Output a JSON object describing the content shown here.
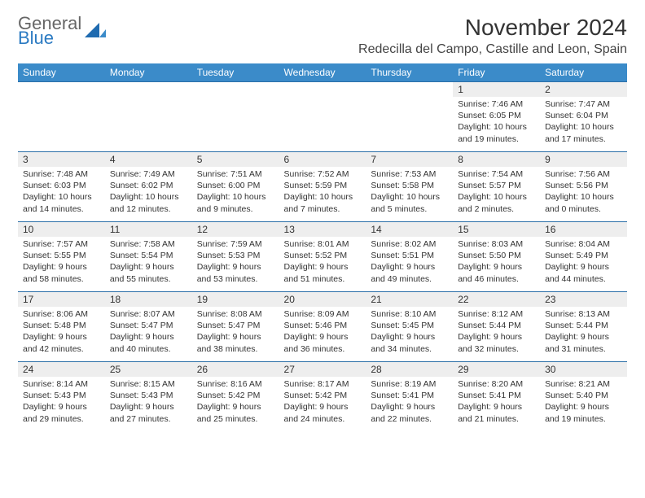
{
  "brand": {
    "word1": "General",
    "word2": "Blue"
  },
  "header": {
    "title": "November 2024",
    "location": "Redecilla del Campo, Castille and Leon, Spain"
  },
  "colors": {
    "header_bg": "#3b8bc9",
    "header_text": "#ffffff",
    "border": "#2b6fa8",
    "daynum_bg": "#eeeeee",
    "brand_blue": "#2b7ac2"
  },
  "day_labels": [
    "Sunday",
    "Monday",
    "Tuesday",
    "Wednesday",
    "Thursday",
    "Friday",
    "Saturday"
  ],
  "weeks": [
    [
      null,
      null,
      null,
      null,
      null,
      {
        "n": "1",
        "sunrise": "Sunrise: 7:46 AM",
        "sunset": "Sunset: 6:05 PM",
        "day1": "Daylight: 10 hours",
        "day2": "and 19 minutes."
      },
      {
        "n": "2",
        "sunrise": "Sunrise: 7:47 AM",
        "sunset": "Sunset: 6:04 PM",
        "day1": "Daylight: 10 hours",
        "day2": "and 17 minutes."
      }
    ],
    [
      {
        "n": "3",
        "sunrise": "Sunrise: 7:48 AM",
        "sunset": "Sunset: 6:03 PM",
        "day1": "Daylight: 10 hours",
        "day2": "and 14 minutes."
      },
      {
        "n": "4",
        "sunrise": "Sunrise: 7:49 AM",
        "sunset": "Sunset: 6:02 PM",
        "day1": "Daylight: 10 hours",
        "day2": "and 12 minutes."
      },
      {
        "n": "5",
        "sunrise": "Sunrise: 7:51 AM",
        "sunset": "Sunset: 6:00 PM",
        "day1": "Daylight: 10 hours",
        "day2": "and 9 minutes."
      },
      {
        "n": "6",
        "sunrise": "Sunrise: 7:52 AM",
        "sunset": "Sunset: 5:59 PM",
        "day1": "Daylight: 10 hours",
        "day2": "and 7 minutes."
      },
      {
        "n": "7",
        "sunrise": "Sunrise: 7:53 AM",
        "sunset": "Sunset: 5:58 PM",
        "day1": "Daylight: 10 hours",
        "day2": "and 5 minutes."
      },
      {
        "n": "8",
        "sunrise": "Sunrise: 7:54 AM",
        "sunset": "Sunset: 5:57 PM",
        "day1": "Daylight: 10 hours",
        "day2": "and 2 minutes."
      },
      {
        "n": "9",
        "sunrise": "Sunrise: 7:56 AM",
        "sunset": "Sunset: 5:56 PM",
        "day1": "Daylight: 10 hours",
        "day2": "and 0 minutes."
      }
    ],
    [
      {
        "n": "10",
        "sunrise": "Sunrise: 7:57 AM",
        "sunset": "Sunset: 5:55 PM",
        "day1": "Daylight: 9 hours",
        "day2": "and 58 minutes."
      },
      {
        "n": "11",
        "sunrise": "Sunrise: 7:58 AM",
        "sunset": "Sunset: 5:54 PM",
        "day1": "Daylight: 9 hours",
        "day2": "and 55 minutes."
      },
      {
        "n": "12",
        "sunrise": "Sunrise: 7:59 AM",
        "sunset": "Sunset: 5:53 PM",
        "day1": "Daylight: 9 hours",
        "day2": "and 53 minutes."
      },
      {
        "n": "13",
        "sunrise": "Sunrise: 8:01 AM",
        "sunset": "Sunset: 5:52 PM",
        "day1": "Daylight: 9 hours",
        "day2": "and 51 minutes."
      },
      {
        "n": "14",
        "sunrise": "Sunrise: 8:02 AM",
        "sunset": "Sunset: 5:51 PM",
        "day1": "Daylight: 9 hours",
        "day2": "and 49 minutes."
      },
      {
        "n": "15",
        "sunrise": "Sunrise: 8:03 AM",
        "sunset": "Sunset: 5:50 PM",
        "day1": "Daylight: 9 hours",
        "day2": "and 46 minutes."
      },
      {
        "n": "16",
        "sunrise": "Sunrise: 8:04 AM",
        "sunset": "Sunset: 5:49 PM",
        "day1": "Daylight: 9 hours",
        "day2": "and 44 minutes."
      }
    ],
    [
      {
        "n": "17",
        "sunrise": "Sunrise: 8:06 AM",
        "sunset": "Sunset: 5:48 PM",
        "day1": "Daylight: 9 hours",
        "day2": "and 42 minutes."
      },
      {
        "n": "18",
        "sunrise": "Sunrise: 8:07 AM",
        "sunset": "Sunset: 5:47 PM",
        "day1": "Daylight: 9 hours",
        "day2": "and 40 minutes."
      },
      {
        "n": "19",
        "sunrise": "Sunrise: 8:08 AM",
        "sunset": "Sunset: 5:47 PM",
        "day1": "Daylight: 9 hours",
        "day2": "and 38 minutes."
      },
      {
        "n": "20",
        "sunrise": "Sunrise: 8:09 AM",
        "sunset": "Sunset: 5:46 PM",
        "day1": "Daylight: 9 hours",
        "day2": "and 36 minutes."
      },
      {
        "n": "21",
        "sunrise": "Sunrise: 8:10 AM",
        "sunset": "Sunset: 5:45 PM",
        "day1": "Daylight: 9 hours",
        "day2": "and 34 minutes."
      },
      {
        "n": "22",
        "sunrise": "Sunrise: 8:12 AM",
        "sunset": "Sunset: 5:44 PM",
        "day1": "Daylight: 9 hours",
        "day2": "and 32 minutes."
      },
      {
        "n": "23",
        "sunrise": "Sunrise: 8:13 AM",
        "sunset": "Sunset: 5:44 PM",
        "day1": "Daylight: 9 hours",
        "day2": "and 31 minutes."
      }
    ],
    [
      {
        "n": "24",
        "sunrise": "Sunrise: 8:14 AM",
        "sunset": "Sunset: 5:43 PM",
        "day1": "Daylight: 9 hours",
        "day2": "and 29 minutes."
      },
      {
        "n": "25",
        "sunrise": "Sunrise: 8:15 AM",
        "sunset": "Sunset: 5:43 PM",
        "day1": "Daylight: 9 hours",
        "day2": "and 27 minutes."
      },
      {
        "n": "26",
        "sunrise": "Sunrise: 8:16 AM",
        "sunset": "Sunset: 5:42 PM",
        "day1": "Daylight: 9 hours",
        "day2": "and 25 minutes."
      },
      {
        "n": "27",
        "sunrise": "Sunrise: 8:17 AM",
        "sunset": "Sunset: 5:42 PM",
        "day1": "Daylight: 9 hours",
        "day2": "and 24 minutes."
      },
      {
        "n": "28",
        "sunrise": "Sunrise: 8:19 AM",
        "sunset": "Sunset: 5:41 PM",
        "day1": "Daylight: 9 hours",
        "day2": "and 22 minutes."
      },
      {
        "n": "29",
        "sunrise": "Sunrise: 8:20 AM",
        "sunset": "Sunset: 5:41 PM",
        "day1": "Daylight: 9 hours",
        "day2": "and 21 minutes."
      },
      {
        "n": "30",
        "sunrise": "Sunrise: 8:21 AM",
        "sunset": "Sunset: 5:40 PM",
        "day1": "Daylight: 9 hours",
        "day2": "and 19 minutes."
      }
    ]
  ]
}
